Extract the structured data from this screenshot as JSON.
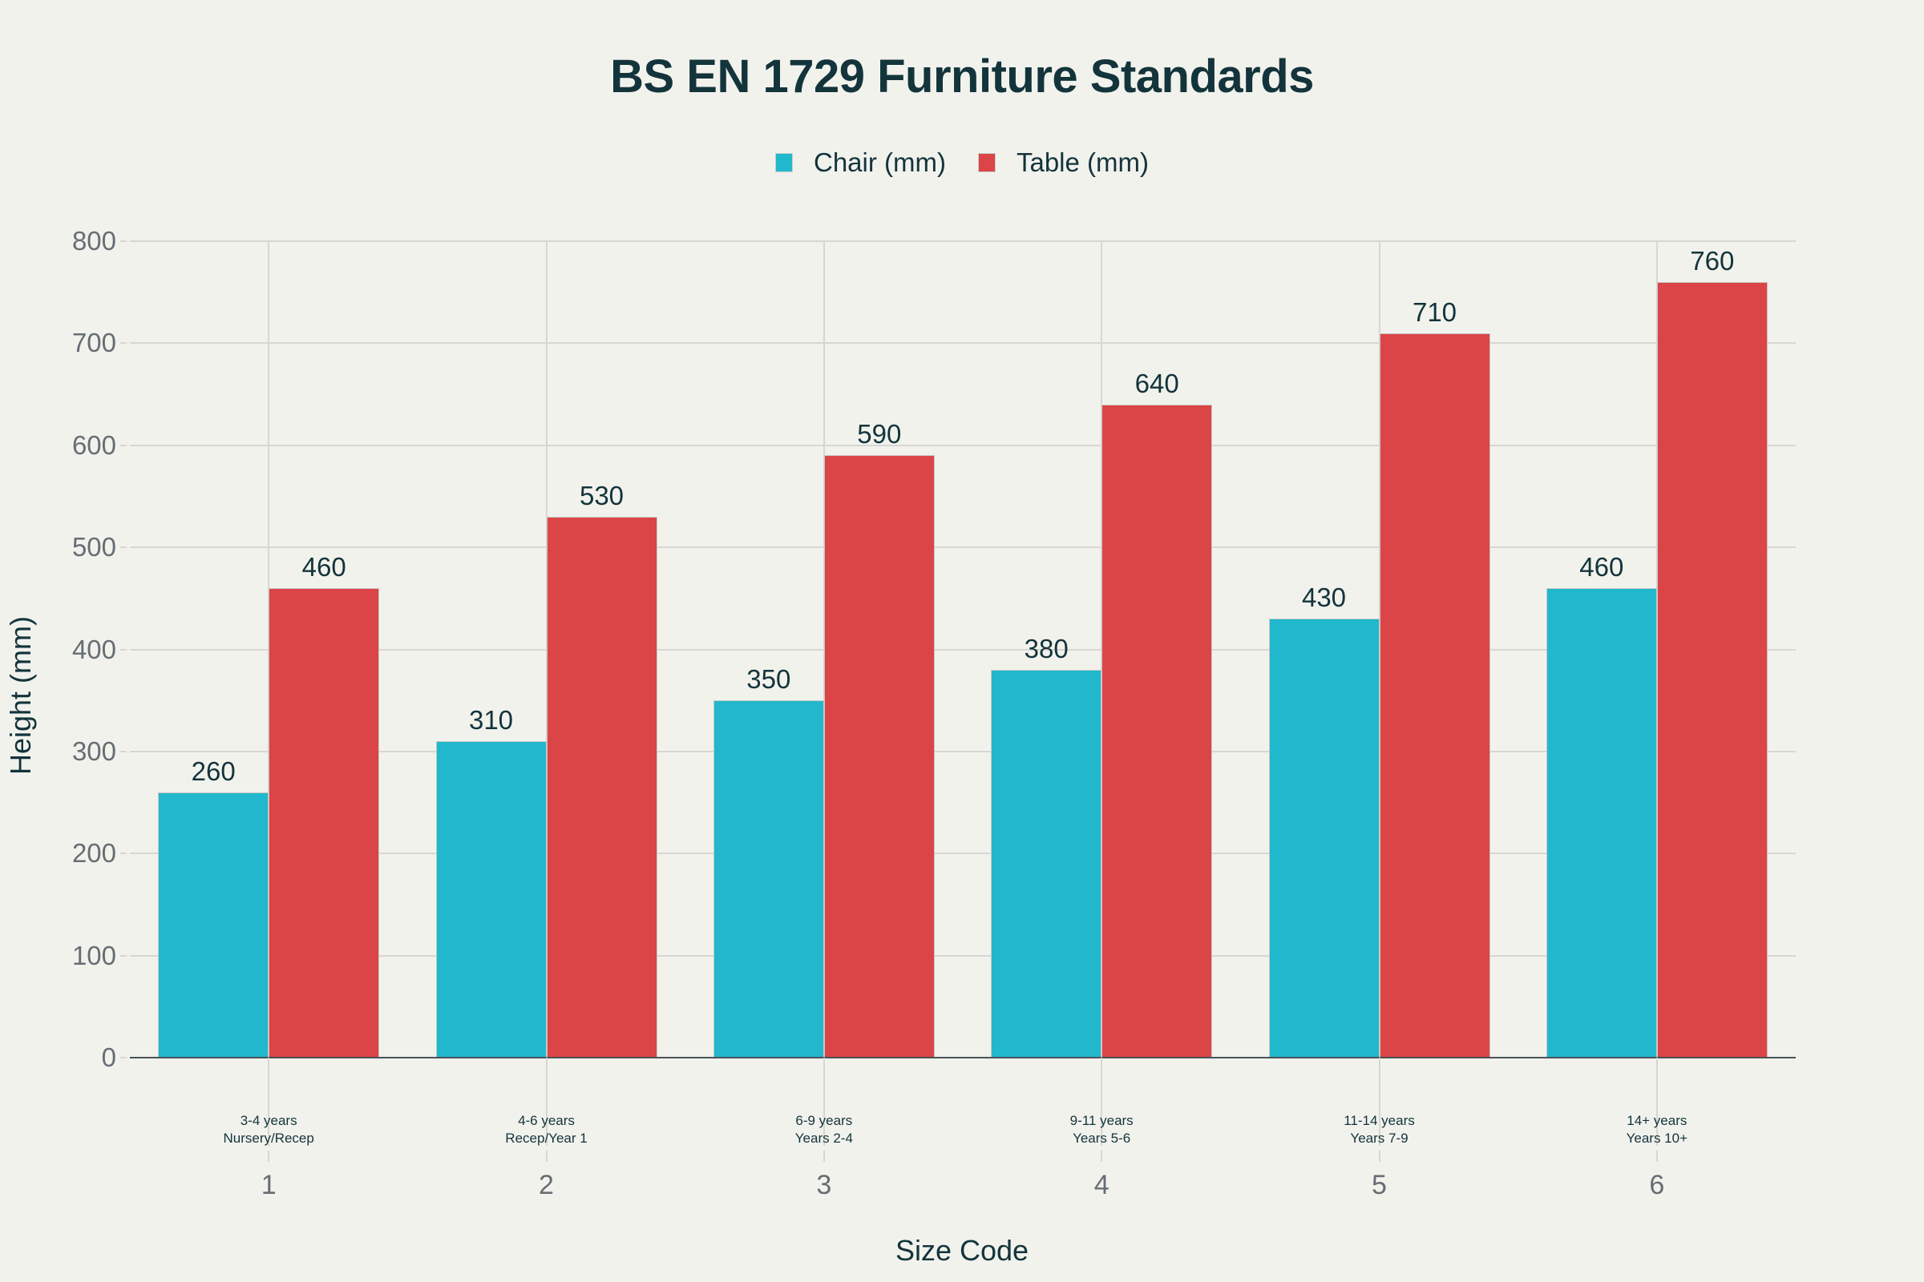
{
  "chart_data": {
    "type": "bar",
    "title": "BS EN 1729 Furniture Standards",
    "xlabel": "Size Code",
    "ylabel": "Height (mm)",
    "ylim": [
      0,
      800
    ],
    "yticks": [
      0,
      100,
      200,
      300,
      400,
      500,
      600,
      700,
      800
    ],
    "grid": true,
    "legend_position": "top-center",
    "categories": [
      "1",
      "2",
      "3",
      "4",
      "5",
      "6"
    ],
    "category_annotations": [
      [
        "3-4 years",
        "Nursery/Recep"
      ],
      [
        "4-6 years",
        "Recep/Year 1"
      ],
      [
        "6-9 years",
        "Years 2-4"
      ],
      [
        "9-11 years",
        "Years 5-6"
      ],
      [
        "11-14 years",
        "Years 7-9"
      ],
      [
        "14+ years",
        "Years 10+"
      ]
    ],
    "series": [
      {
        "name": "Chair (mm)",
        "color": "#21B8CD",
        "values": [
          260,
          310,
          350,
          380,
          430,
          460
        ]
      },
      {
        "name": "Table (mm)",
        "color": "#DB4547",
        "values": [
          460,
          530,
          590,
          640,
          710,
          760
        ]
      }
    ]
  }
}
